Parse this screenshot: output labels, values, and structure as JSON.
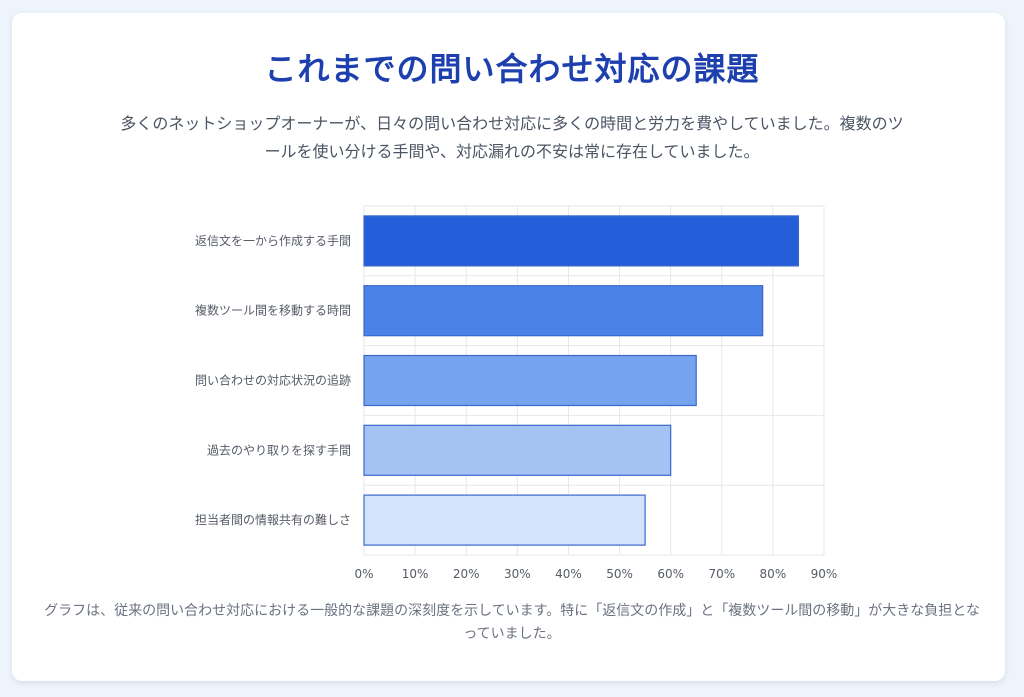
{
  "header": {
    "title": "これまでの問い合わせ対応の課題",
    "lead": "多くのネットショップオーナーが、日々の問い合わせ対応に多くの時間と労力を費やしていました。複数のツールを使い分ける手間や、対応漏れの不安は常に存在していました。"
  },
  "footer": {
    "caption": "グラフは、従来の問い合わせ対応における一般的な課題の深刻度を示しています。特に「返信文の作成」と「複数ツール間の移動」が大きな負担となっていました。"
  },
  "colors": {
    "title": "#1e40af",
    "bar_border": "#3b67c9",
    "grid": "#e5e7eb"
  },
  "chart_data": {
    "type": "bar",
    "orientation": "horizontal",
    "categories": [
      "返信文を一から作成する手間",
      "複数ツール間を移動する時間",
      "問い合わせの対応状況の追跡",
      "過去のやり取りを探す手間",
      "担当者間の情報共有の難しさ"
    ],
    "values": [
      85,
      78,
      65,
      60,
      55
    ],
    "bar_colors": [
      "#245fd9",
      "#4a82e8",
      "#75a3ee",
      "#a2c3f4",
      "#d3e3fa"
    ],
    "x_ticks": [
      "0%",
      "10%",
      "20%",
      "30%",
      "40%",
      "50%",
      "60%",
      "70%",
      "80%",
      "90%"
    ],
    "xlim": [
      0,
      90
    ],
    "grid": true,
    "legend": "none"
  }
}
